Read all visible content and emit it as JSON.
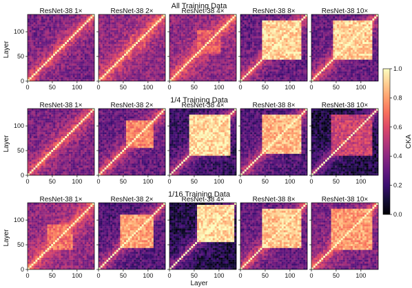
{
  "chart_data": {
    "type": "heatmap",
    "row_titles": [
      "All Training Data",
      "1/4 Training Data",
      "1/16 Training Data"
    ],
    "panel_titles": [
      "ResNet-38 1×",
      "ResNet-38 2×",
      "ResNet-38 4×",
      "ResNet-38 8×",
      "ResNet-38 10×"
    ],
    "xlabel": "Layer",
    "ylabel": "Layer",
    "xlim": [
      0,
      135
    ],
    "ylim": [
      0,
      135
    ],
    "xticks": [
      0,
      50,
      100
    ],
    "yticks": [
      0,
      50,
      100
    ],
    "colorbar": {
      "label": "CKA",
      "range": [
        0.0,
        1.0
      ],
      "ticks": [
        "0.0",
        "0.2",
        "0.4",
        "0.6",
        "0.8",
        "1.0"
      ],
      "colormap": "magma"
    },
    "panels": [
      {
        "row": 0,
        "model": "ResNet-38 1×",
        "block_start": 0,
        "block_end": 0,
        "block_cka": 0.0,
        "background_cka": 0.35
      },
      {
        "row": 0,
        "model": "ResNet-38 2×",
        "block_start": 65,
        "block_end": 95,
        "block_cka": 0.6,
        "background_cka": 0.4
      },
      {
        "row": 0,
        "model": "ResNet-38 4×",
        "block_start": 55,
        "block_end": 105,
        "block_cka": 0.65,
        "background_cka": 0.4
      },
      {
        "row": 0,
        "model": "ResNet-38 8×",
        "block_start": 45,
        "block_end": 125,
        "block_cka": 0.9,
        "background_cka": 0.3
      },
      {
        "row": 0,
        "model": "ResNet-38 10×",
        "block_start": 45,
        "block_end": 125,
        "block_cka": 0.9,
        "background_cka": 0.3
      },
      {
        "row": 1,
        "model": "ResNet-38 1×",
        "block_start": 0,
        "block_end": 0,
        "block_cka": 0.0,
        "background_cka": 0.35
      },
      {
        "row": 1,
        "model": "ResNet-38 2×",
        "block_start": 55,
        "block_end": 110,
        "block_cka": 0.75,
        "background_cka": 0.3
      },
      {
        "row": 1,
        "model": "ResNet-38 4×",
        "block_start": 40,
        "block_end": 125,
        "block_cka": 0.92,
        "background_cka": 0.2
      },
      {
        "row": 1,
        "model": "ResNet-38 8×",
        "block_start": 45,
        "block_end": 125,
        "block_cka": 0.85,
        "background_cka": 0.25
      },
      {
        "row": 1,
        "model": "ResNet-38 10×",
        "block_start": 40,
        "block_end": 125,
        "block_cka": 0.55,
        "background_cka": 0.12
      },
      {
        "row": 2,
        "model": "ResNet-38 1×",
        "block_start": 40,
        "block_end": 90,
        "block_cka": 0.7,
        "background_cka": 0.4
      },
      {
        "row": 2,
        "model": "ResNet-38 2×",
        "block_start": 45,
        "block_end": 110,
        "block_cka": 0.8,
        "background_cka": 0.25
      },
      {
        "row": 2,
        "model": "ResNet-38 4×",
        "block_start": 55,
        "block_end": 130,
        "block_cka": 0.92,
        "background_cka": 0.12
      },
      {
        "row": 2,
        "model": "ResNet-38 8×",
        "block_start": 45,
        "block_end": 125,
        "block_cka": 0.88,
        "background_cka": 0.3
      },
      {
        "row": 2,
        "model": "ResNet-38 10×",
        "block_start": 40,
        "block_end": 125,
        "block_cka": 0.8,
        "background_cka": 0.35
      }
    ]
  }
}
